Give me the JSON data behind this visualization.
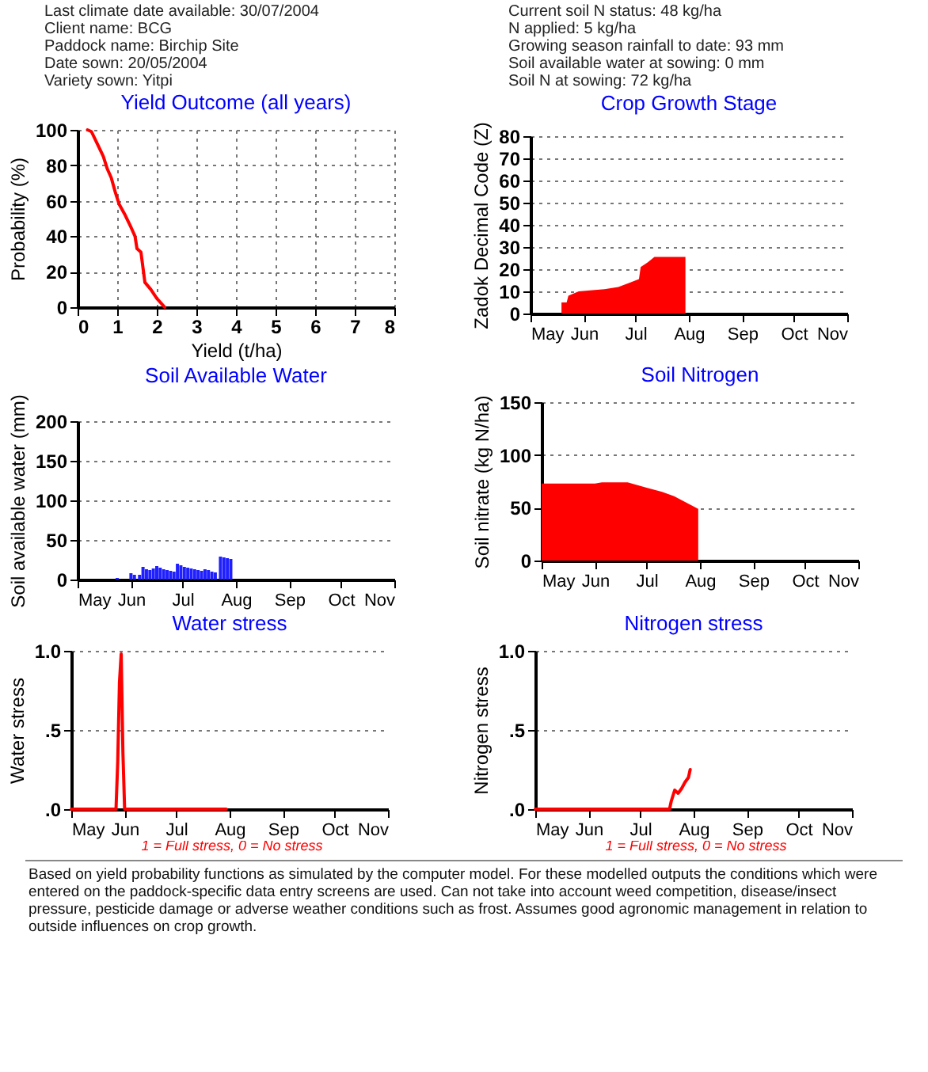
{
  "chart_data": [
    {
      "type": "line",
      "title": "Yield Outcome (all years)",
      "xlabel": "Yield (t/ha)",
      "ylabel": "Probability (%)",
      "annotations": [
        "Last climate date available: 30/07/2004",
        "Client name: BCG",
        "Paddock name: Birchip Site",
        "Date sown: 20/05/2004",
        "Variety sown: Yitpi"
      ],
      "xlim": [
        0,
        8
      ],
      "xticks": [
        0,
        1,
        2,
        3,
        4,
        5,
        6,
        7,
        8
      ],
      "ylim": [
        0,
        100
      ],
      "yticks": [
        0,
        20,
        40,
        60,
        80,
        100
      ],
      "grid": true,
      "series": [
        {
          "color": "#ff0000",
          "x": [
            0.25,
            0.35,
            0.5,
            0.65,
            0.75,
            0.85,
            0.95,
            1.05,
            1.2,
            1.35,
            1.45,
            1.5,
            1.6,
            1.7,
            1.85,
            2.0,
            2.2
          ],
          "values": [
            100,
            99,
            92,
            85,
            78,
            73,
            65,
            58,
            52,
            45,
            40,
            33,
            31,
            14,
            10,
            5,
            0
          ]
        }
      ]
    },
    {
      "type": "area",
      "title": "Crop Growth Stage",
      "ylabel": "Zadok Decimal Code (Z)",
      "annotations": [
        "Current soil N status: 48 kg/ha",
        "N applied: 5 kg/ha",
        "Growing season rainfall to date: 93 mm",
        "Soil available water at sowing: 0 mm",
        "Soil N at sowing: 72 kg/ha"
      ],
      "xlim": [
        "2004-05-01",
        "2004-11-01"
      ],
      "xticks": [
        {
          "value": "2004-05-01",
          "label": "May"
        },
        {
          "value": "2004-06-01",
          "label": "Jun"
        },
        {
          "value": "2004-07-01",
          "label": "Jul"
        },
        {
          "value": "2004-08-01",
          "label": "Aug"
        },
        {
          "value": "2004-09-01",
          "label": "Sep"
        },
        {
          "value": "2004-10-01",
          "label": "Oct"
        },
        {
          "value": "2004-11-01",
          "label": "Nov"
        }
      ],
      "ylim": [
        0,
        80
      ],
      "yticks": [
        0,
        10,
        20,
        30,
        40,
        50,
        60,
        70,
        80
      ],
      "grid": "y",
      "series": [
        {
          "color": "#ff0000",
          "x": [
            "2004-05-19",
            "2004-05-22",
            "2004-05-23",
            "2004-05-29",
            "2004-06-06",
            "2004-06-13",
            "2004-06-21",
            "2004-06-28",
            "2004-07-03",
            "2004-07-04",
            "2004-07-08",
            "2004-07-12",
            "2004-07-30"
          ],
          "values": [
            5,
            5,
            8,
            10,
            10.5,
            11,
            12,
            14,
            15.5,
            21,
            23,
            25.5,
            25.5
          ]
        }
      ]
    },
    {
      "type": "bar",
      "title": "Soil Available Water",
      "ylabel": "Soil available water (mm)",
      "xlim": [
        "2004-05-01",
        "2004-11-01"
      ],
      "xticks": [
        {
          "value": "2004-05-01",
          "label": "May"
        },
        {
          "value": "2004-06-01",
          "label": "Jun"
        },
        {
          "value": "2004-07-01",
          "label": "Jul"
        },
        {
          "value": "2004-08-01",
          "label": "Aug"
        },
        {
          "value": "2004-09-01",
          "label": "Sep"
        },
        {
          "value": "2004-10-01",
          "label": "Oct"
        },
        {
          "value": "2004-11-01",
          "label": "Nov"
        }
      ],
      "ylim": [
        0,
        200
      ],
      "yticks": [
        0,
        50,
        100,
        150,
        200
      ],
      "grid": "y",
      "series": [
        {
          "color": "#2020ff",
          "x": [
            "2004-05-24",
            "2004-06-01",
            "2004-06-03",
            "2004-06-06",
            "2004-06-08",
            "2004-06-10",
            "2004-06-12",
            "2004-06-14",
            "2004-06-16",
            "2004-06-18",
            "2004-06-20",
            "2004-06-22",
            "2004-06-24",
            "2004-06-26",
            "2004-06-28",
            "2004-06-30",
            "2004-07-02",
            "2004-07-04",
            "2004-07-06",
            "2004-07-08",
            "2004-07-10",
            "2004-07-12",
            "2004-07-14",
            "2004-07-16",
            "2004-07-18",
            "2004-07-20",
            "2004-07-23",
            "2004-07-25",
            "2004-07-27",
            "2004-07-29"
          ],
          "values": [
            2,
            8,
            6,
            6,
            16,
            13,
            12,
            14,
            17,
            15,
            13,
            12,
            11,
            10,
            20,
            18,
            16,
            15,
            14,
            13,
            12,
            11,
            13,
            12,
            10,
            9,
            29,
            28,
            27,
            26
          ]
        }
      ]
    },
    {
      "type": "area",
      "title": "Soil Nitrogen",
      "ylabel": "Soil nitrate (kg N/ha)",
      "xlim": [
        "2004-05-01",
        "2004-11-01"
      ],
      "xticks": [
        {
          "value": "2004-05-01",
          "label": "May"
        },
        {
          "value": "2004-06-01",
          "label": "Jun"
        },
        {
          "value": "2004-07-01",
          "label": "Jul"
        },
        {
          "value": "2004-08-01",
          "label": "Aug"
        },
        {
          "value": "2004-09-01",
          "label": "Sep"
        },
        {
          "value": "2004-10-01",
          "label": "Oct"
        },
        {
          "value": "2004-11-01",
          "label": "Nov"
        }
      ],
      "ylim": [
        0,
        150
      ],
      "yticks": [
        0,
        50,
        100,
        150
      ],
      "grid": "y",
      "series": [
        {
          "color": "#ff0000",
          "x": [
            "2004-05-01",
            "2004-06-01",
            "2004-06-05",
            "2004-06-20",
            "2004-07-01",
            "2004-07-10",
            "2004-07-17",
            "2004-07-24",
            "2004-07-31"
          ],
          "values": [
            73,
            73,
            74,
            74,
            69,
            65,
            61,
            55,
            49
          ]
        }
      ]
    },
    {
      "type": "line",
      "title": "Water stress",
      "ylabel": "Water stress",
      "annotations": [
        "1 = Full stress, 0 = No stress"
      ],
      "xlim": [
        "2004-05-01",
        "2004-11-01"
      ],
      "xticks": [
        {
          "value": "2004-05-01",
          "label": "May"
        },
        {
          "value": "2004-06-01",
          "label": "Jun"
        },
        {
          "value": "2004-07-01",
          "label": "Jul"
        },
        {
          "value": "2004-08-01",
          "label": "Aug"
        },
        {
          "value": "2004-09-01",
          "label": "Sep"
        },
        {
          "value": "2004-10-01",
          "label": "Oct"
        },
        {
          "value": "2004-11-01",
          "label": "Nov"
        }
      ],
      "ylim": [
        0,
        1
      ],
      "yticks": [
        {
          "value": 0,
          "label": ".0"
        },
        {
          "value": 0.5,
          "label": ".5"
        },
        {
          "value": 1,
          "label": "1.0"
        }
      ],
      "grid": "y",
      "series": [
        {
          "color": "#ff0000",
          "x": [
            "2004-05-01",
            "2004-05-27",
            "2004-05-28",
            "2004-05-29",
            "2004-05-30",
            "2004-05-31",
            "2004-06-01",
            "2004-07-30"
          ],
          "values": [
            0,
            0,
            0.3,
            0.8,
            0.98,
            0.36,
            0,
            0
          ]
        }
      ]
    },
    {
      "type": "line",
      "title": "Nitrogen stress",
      "ylabel": "Nitrogen stress",
      "annotations": [
        "1 = Full stress, 0 = No stress",
        "Based on yield probability functions as simulated by the computer model. For these modelled outputs the conditions which were entered on the paddock-specific data entry screens are used. Can not take into account weed competition, disease/insect pressure, pesticide damage or adverse weather conditions such as frost. Assumes good agronomic management in relation to outside influences on crop growth."
      ],
      "xlim": [
        "2004-05-01",
        "2004-11-01"
      ],
      "xticks": [
        {
          "value": "2004-05-01",
          "label": "May"
        },
        {
          "value": "2004-06-01",
          "label": "Jun"
        },
        {
          "value": "2004-07-01",
          "label": "Jul"
        },
        {
          "value": "2004-08-01",
          "label": "Aug"
        },
        {
          "value": "2004-09-01",
          "label": "Sep"
        },
        {
          "value": "2004-10-01",
          "label": "Oct"
        },
        {
          "value": "2004-11-01",
          "label": "Nov"
        }
      ],
      "ylim": [
        0,
        1
      ],
      "yticks": [
        {
          "value": 0,
          "label": ".0"
        },
        {
          "value": 0.5,
          "label": ".5"
        },
        {
          "value": 1,
          "label": "1.0"
        }
      ],
      "grid": "y",
      "series": [
        {
          "color": "#ff0000",
          "x": [
            "2004-05-01",
            "2004-07-18",
            "2004-07-19",
            "2004-07-21",
            "2004-07-23",
            "2004-07-25",
            "2004-07-27",
            "2004-07-29",
            "2004-07-30"
          ],
          "values": [
            0,
            0,
            0.05,
            0.12,
            0.1,
            0.13,
            0.17,
            0.2,
            0.25
          ]
        }
      ]
    }
  ]
}
